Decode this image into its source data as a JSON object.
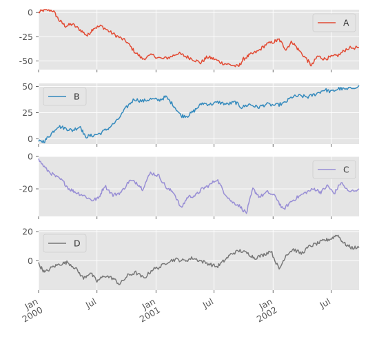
{
  "chart_data": {
    "type": "line",
    "layout": "4 stacked subplots with shared date x-axis",
    "style": "ggplot",
    "grid": true,
    "x_range": [
      "2000-01-01",
      "2002-09-26"
    ],
    "x_ticks": [
      {
        "date": "2000-01-01",
        "label": [
          "Jan",
          "2000"
        ]
      },
      {
        "date": "2000-07-01",
        "label": [
          "Jul"
        ]
      },
      {
        "date": "2001-01-01",
        "label": [
          "Jan",
          "2001"
        ]
      },
      {
        "date": "2001-07-01",
        "label": [
          "Jul"
        ]
      },
      {
        "date": "2002-01-01",
        "label": [
          "Jan",
          "2002"
        ]
      },
      {
        "date": "2002-07-01",
        "label": [
          "Jul"
        ]
      }
    ],
    "subplots": [
      {
        "series": "A",
        "color": "#E24A33",
        "legend": "upper right",
        "ylim": [
          -59,
          3
        ],
        "yticks": [
          0,
          -25,
          -50
        ],
        "points": [
          [
            "2000-01-01",
            0
          ],
          [
            "2000-01-20",
            3
          ],
          [
            "2000-02-15",
            2
          ],
          [
            "2000-03-05",
            -8
          ],
          [
            "2000-03-25",
            -14
          ],
          [
            "2000-04-15",
            -12
          ],
          [
            "2000-05-10",
            -18
          ],
          [
            "2000-06-01",
            -24
          ],
          [
            "2000-06-20",
            -16
          ],
          [
            "2000-07-15",
            -14
          ],
          [
            "2000-08-10",
            -20
          ],
          [
            "2000-09-05",
            -25
          ],
          [
            "2000-10-01",
            -30
          ],
          [
            "2000-10-25",
            -40
          ],
          [
            "2000-11-20",
            -48
          ],
          [
            "2000-12-20",
            -44
          ],
          [
            "2001-01-20",
            -48
          ],
          [
            "2001-02-15",
            -46
          ],
          [
            "2001-03-10",
            -42
          ],
          [
            "2001-04-01",
            -45
          ],
          [
            "2001-04-25",
            -48
          ],
          [
            "2001-05-20",
            -52
          ],
          [
            "2001-06-10",
            -46
          ],
          [
            "2001-07-01",
            -48
          ],
          [
            "2001-07-25",
            -52
          ],
          [
            "2001-08-20",
            -54
          ],
          [
            "2001-09-15",
            -56
          ],
          [
            "2001-10-01",
            -48
          ],
          [
            "2001-10-20",
            -44
          ],
          [
            "2001-11-15",
            -40
          ],
          [
            "2001-12-10",
            -33
          ],
          [
            "2002-01-05",
            -30
          ],
          [
            "2002-01-20",
            -28
          ],
          [
            "2002-02-10",
            -38
          ],
          [
            "2002-03-01",
            -30
          ],
          [
            "2002-03-20",
            -38
          ],
          [
            "2002-04-15",
            -48
          ],
          [
            "2002-05-01",
            -55
          ],
          [
            "2002-05-20",
            -45
          ],
          [
            "2002-06-10",
            -48
          ],
          [
            "2002-07-01",
            -46
          ],
          [
            "2002-07-25",
            -44
          ],
          [
            "2002-08-20",
            -37
          ],
          [
            "2002-09-26",
            -36
          ]
        ]
      },
      {
        "series": "B",
        "color": "#348ABD",
        "legend": "upper left",
        "ylim": [
          -5,
          53
        ],
        "yticks": [
          0,
          25,
          50
        ],
        "points": [
          [
            "2000-01-01",
            -3
          ],
          [
            "2000-01-20",
            -2
          ],
          [
            "2000-02-10",
            5
          ],
          [
            "2000-03-01",
            12
          ],
          [
            "2000-03-25",
            10
          ],
          [
            "2000-04-15",
            8
          ],
          [
            "2000-05-10",
            12
          ],
          [
            "2000-05-25",
            2
          ],
          [
            "2000-06-15",
            3
          ],
          [
            "2000-07-10",
            5
          ],
          [
            "2000-08-05",
            10
          ],
          [
            "2000-09-01",
            17
          ],
          [
            "2000-10-01",
            30
          ],
          [
            "2000-10-25",
            38
          ],
          [
            "2000-11-20",
            36
          ],
          [
            "2000-12-15",
            38
          ],
          [
            "2001-01-10",
            37
          ],
          [
            "2001-02-01",
            40
          ],
          [
            "2001-02-25",
            32
          ],
          [
            "2001-03-20",
            22
          ],
          [
            "2001-04-10",
            22
          ],
          [
            "2001-05-01",
            27
          ],
          [
            "2001-05-25",
            34
          ],
          [
            "2001-06-20",
            33
          ],
          [
            "2001-07-15",
            35
          ],
          [
            "2001-08-10",
            33
          ],
          [
            "2001-09-05",
            35
          ],
          [
            "2001-09-25",
            30
          ],
          [
            "2001-10-20",
            33
          ],
          [
            "2001-11-15",
            30
          ],
          [
            "2001-12-10",
            33
          ],
          [
            "2002-01-10",
            32
          ],
          [
            "2002-02-05",
            34
          ],
          [
            "2002-03-01",
            40
          ],
          [
            "2002-03-25",
            41
          ],
          [
            "2002-04-20",
            40
          ],
          [
            "2002-05-15",
            43
          ],
          [
            "2002-06-10",
            47
          ],
          [
            "2002-07-01",
            45
          ],
          [
            "2002-07-25",
            48
          ],
          [
            "2002-08-20",
            47
          ],
          [
            "2002-09-26",
            51
          ]
        ]
      },
      {
        "series": "C",
        "color": "#988ED5",
        "legend": "upper right",
        "ylim": [
          -37,
          0
        ],
        "yticks": [
          0,
          -20
        ],
        "points": [
          [
            "2000-01-01",
            -2
          ],
          [
            "2000-01-25",
            -8
          ],
          [
            "2000-02-20",
            -12
          ],
          [
            "2000-03-15",
            -15
          ],
          [
            "2000-04-05",
            -20
          ],
          [
            "2000-04-25",
            -22
          ],
          [
            "2000-05-20",
            -24
          ],
          [
            "2000-06-15",
            -27
          ],
          [
            "2000-07-05",
            -26
          ],
          [
            "2000-07-25",
            -18
          ],
          [
            "2000-08-20",
            -24
          ],
          [
            "2000-09-15",
            -22
          ],
          [
            "2000-10-10",
            -15
          ],
          [
            "2000-11-01",
            -16
          ],
          [
            "2000-11-20",
            -20
          ],
          [
            "2000-12-15",
            -10
          ],
          [
            "2001-01-10",
            -12
          ],
          [
            "2001-02-05",
            -20
          ],
          [
            "2001-02-25",
            -22
          ],
          [
            "2001-03-20",
            -32
          ],
          [
            "2001-04-10",
            -25
          ],
          [
            "2001-05-05",
            -24
          ],
          [
            "2001-05-25",
            -20
          ],
          [
            "2001-06-15",
            -18
          ],
          [
            "2001-07-10",
            -14
          ],
          [
            "2001-08-01",
            -22
          ],
          [
            "2001-08-25",
            -28
          ],
          [
            "2001-09-15",
            -30
          ],
          [
            "2001-10-10",
            -35
          ],
          [
            "2001-10-30",
            -20
          ],
          [
            "2001-11-20",
            -25
          ],
          [
            "2001-12-15",
            -22
          ],
          [
            "2002-01-10",
            -25
          ],
          [
            "2002-02-01",
            -33
          ],
          [
            "2002-02-25",
            -28
          ],
          [
            "2002-03-20",
            -25
          ],
          [
            "2002-04-15",
            -22
          ],
          [
            "2002-05-10",
            -20
          ],
          [
            "2002-05-30",
            -22
          ],
          [
            "2002-06-20",
            -18
          ],
          [
            "2002-07-10",
            -23
          ],
          [
            "2002-08-01",
            -16
          ],
          [
            "2002-08-25",
            -22
          ],
          [
            "2002-09-26",
            -20
          ]
        ]
      },
      {
        "series": "D",
        "color": "#777777",
        "legend": "upper left",
        "ylim": [
          -20,
          21
        ],
        "yticks": [
          20,
          0
        ],
        "points": [
          [
            "2000-01-01",
            -2
          ],
          [
            "2000-01-20",
            -8
          ],
          [
            "2000-02-15",
            -4
          ],
          [
            "2000-03-10",
            -2
          ],
          [
            "2000-04-01",
            -1
          ],
          [
            "2000-04-25",
            -5
          ],
          [
            "2000-05-20",
            -12
          ],
          [
            "2000-06-10",
            -8
          ],
          [
            "2000-07-01",
            -14
          ],
          [
            "2000-07-25",
            -10
          ],
          [
            "2000-08-20",
            -12
          ],
          [
            "2000-09-10",
            -16
          ],
          [
            "2000-10-05",
            -10
          ],
          [
            "2000-10-30",
            -8
          ],
          [
            "2000-11-25",
            -12
          ],
          [
            "2000-12-20",
            -6
          ],
          [
            "2001-01-15",
            -4
          ],
          [
            "2001-02-10",
            0
          ],
          [
            "2001-03-05",
            1
          ],
          [
            "2001-04-01",
            0
          ],
          [
            "2001-04-25",
            2
          ],
          [
            "2001-05-20",
            0
          ],
          [
            "2001-06-15",
            -2
          ],
          [
            "2001-07-10",
            -4
          ],
          [
            "2001-08-01",
            0
          ],
          [
            "2001-08-25",
            5
          ],
          [
            "2001-09-20",
            7
          ],
          [
            "2001-10-15",
            5
          ],
          [
            "2001-11-05",
            2
          ],
          [
            "2001-12-01",
            4
          ],
          [
            "2001-12-25",
            7
          ],
          [
            "2002-01-20",
            -6
          ],
          [
            "2002-02-10",
            4
          ],
          [
            "2002-03-05",
            8
          ],
          [
            "2002-03-30",
            5
          ],
          [
            "2002-04-25",
            10
          ],
          [
            "2002-05-20",
            12
          ],
          [
            "2002-06-10",
            14
          ],
          [
            "2002-06-30",
            15
          ],
          [
            "2002-07-20",
            18
          ],
          [
            "2002-08-10",
            12
          ],
          [
            "2002-09-01",
            9
          ],
          [
            "2002-09-26",
            9
          ]
        ]
      }
    ]
  }
}
